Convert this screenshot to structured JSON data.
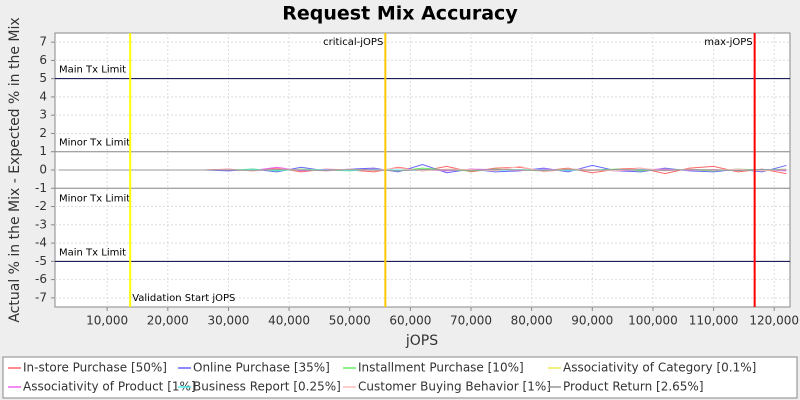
{
  "chart_data": {
    "type": "line",
    "title": "Request Mix Accuracy",
    "x_label": "jOPS",
    "y_label": "Actual % in the Mix - Expected % in the Mix",
    "xlim": [
      1400,
      122600
    ],
    "ylim": [
      -7.5,
      7.5
    ],
    "xticks": [
      {
        "value": 10000,
        "label": "10,000"
      },
      {
        "value": 20000,
        "label": "20,000"
      },
      {
        "value": 30000,
        "label": "30,000"
      },
      {
        "value": 40000,
        "label": "40,000"
      },
      {
        "value": 50000,
        "label": "50,000"
      },
      {
        "value": 60000,
        "label": "60,000"
      },
      {
        "value": 70000,
        "label": "70,000"
      },
      {
        "value": 80000,
        "label": "80,000"
      },
      {
        "value": 90000,
        "label": "90,000"
      },
      {
        "value": 100000,
        "label": "100,000"
      },
      {
        "value": 110000,
        "label": "110,000"
      },
      {
        "value": 120000,
        "label": "120,000"
      }
    ],
    "yticks": [
      -7,
      -6,
      -5,
      -4,
      -3,
      -2,
      -1,
      0,
      1,
      2,
      3,
      4,
      5,
      6,
      7
    ],
    "grid": true,
    "limits": [
      {
        "label": "Main Tx Limit",
        "value": 5,
        "color": "#000044"
      },
      {
        "label": "Minor Tx Limit",
        "value": 1,
        "color": "#888888"
      },
      {
        "label": "Minor Tx Limit",
        "value": -1,
        "color": "#888888"
      },
      {
        "label": "Main Tx Limit",
        "value": -5,
        "color": "#000044"
      }
    ],
    "markers": [
      {
        "label": "Validation Start jOPS",
        "value": 13800,
        "color": "#ffff00"
      },
      {
        "label": "critical-jOPS",
        "value": 55870,
        "color": "#ffc800"
      },
      {
        "label": "max-jOPS",
        "value": 116770,
        "color": "#ff0000"
      }
    ],
    "x": [
      2000,
      6000,
      10000,
      14000,
      18000,
      22000,
      26000,
      30000,
      34000,
      38000,
      42000,
      46000,
      50000,
      54000,
      58000,
      62000,
      66000,
      70000,
      74000,
      78000,
      82000,
      86000,
      90000,
      94000,
      98000,
      102000,
      106000,
      110000,
      114000,
      118000,
      122000
    ],
    "series": [
      {
        "name": "In-store Purchase [50%]",
        "color": "#ff6666",
        "values": [
          0,
          0,
          0,
          0,
          0,
          0,
          0,
          0.05,
          -0.05,
          0.1,
          -0.1,
          0.05,
          0,
          -0.1,
          0.15,
          -0.05,
          0.2,
          -0.1,
          0.1,
          0.15,
          -0.05,
          0.1,
          -0.15,
          0.05,
          0.1,
          -0.2,
          0.1,
          0.2,
          -0.1,
          0.05,
          -0.2
        ]
      },
      {
        "name": "Online Purchase [35%]",
        "color": "#6666ff",
        "values": [
          0,
          0,
          0,
          0,
          0,
          0,
          0,
          -0.05,
          0.05,
          -0.1,
          0.15,
          -0.05,
          0.05,
          0.1,
          -0.1,
          0.3,
          -0.15,
          0.05,
          -0.1,
          -0.05,
          0.1,
          -0.1,
          0.25,
          -0.05,
          -0.1,
          0.1,
          -0.05,
          -0.1,
          0.05,
          -0.1,
          0.25
        ]
      },
      {
        "name": "Installment Purchase [10%]",
        "color": "#66ee66",
        "values": [
          0,
          0,
          0,
          0,
          0,
          0,
          0,
          0,
          0.05,
          -0.05,
          0.05,
          0,
          -0.05,
          0.05,
          -0.05,
          0.1,
          0,
          -0.05,
          0.05,
          0,
          -0.05,
          0.05,
          0,
          0.05,
          -0.05,
          0.05,
          0,
          -0.05,
          0.05,
          0,
          0.05
        ]
      },
      {
        "name": "Associativity of Category [0.1%]",
        "color": "#eeee55",
        "values": [
          0,
          0,
          0,
          0,
          0,
          0,
          0,
          0,
          0,
          0.02,
          -0.02,
          0,
          0.02,
          0,
          -0.02,
          0.02,
          0,
          0,
          0.02,
          -0.02,
          0,
          0.02,
          0,
          -0.02,
          0.02,
          0,
          0,
          0.02,
          -0.02,
          0,
          0
        ]
      },
      {
        "name": "Associativity of Product [1%]",
        "color": "#ee66ee",
        "values": [
          0,
          0,
          0,
          0,
          0,
          0,
          0,
          0.02,
          -0.03,
          0.15,
          -0.05,
          0.03,
          -0.02,
          0.05,
          -0.03,
          0.02,
          -0.05,
          0.05,
          0.02,
          -0.03,
          0.05,
          -0.02,
          0.03,
          -0.05,
          0.02,
          0.05,
          -0.03,
          0.02,
          -0.02,
          0.03,
          -0.05
        ]
      },
      {
        "name": "Business Report [0.25%]",
        "color": "#55eeee",
        "values": [
          0,
          0,
          0,
          0,
          0,
          0,
          0,
          0,
          0.02,
          -0.02,
          0.02,
          0,
          -0.03,
          0.02,
          0,
          -0.02,
          0.03,
          0,
          -0.02,
          0.02,
          0,
          -0.03,
          0.02,
          0,
          0.03,
          -0.02,
          0.02,
          0,
          -0.02,
          0.02,
          0
        ]
      },
      {
        "name": "Customer Buying Behavior [1%]",
        "color": "#ffbbbb",
        "values": [
          0,
          0,
          0,
          0,
          0,
          0,
          0,
          0.03,
          -0.05,
          0.05,
          0.02,
          -0.05,
          0.05,
          -0.03,
          0.1,
          -0.05,
          0.05,
          0.02,
          -0.05,
          0.2,
          -0.1,
          0.05,
          0.03,
          -0.05,
          0.1,
          -0.05,
          0.05,
          -0.03,
          0.05,
          -0.05,
          0.05
        ]
      },
      {
        "name": "Product Return [2.65%]",
        "color": "#999999",
        "values": [
          0,
          0,
          0,
          0,
          0,
          0,
          0,
          0,
          -0.02,
          0.03,
          0,
          -0.03,
          0.02,
          0,
          -0.05,
          0.03,
          0,
          -0.02,
          0.03,
          0,
          -0.03,
          0.02,
          -0.02,
          0.03,
          0,
          -0.02,
          0.02,
          0,
          -0.03,
          0.02,
          0
        ]
      }
    ]
  }
}
